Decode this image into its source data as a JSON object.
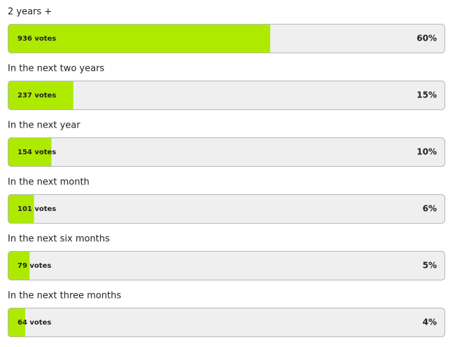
{
  "chart_data": {
    "type": "bar",
    "orientation": "horizontal",
    "categories": [
      "2 years +",
      "In the next two years",
      "In the next year",
      "In the next month",
      "In the next six months",
      "In the next three months"
    ],
    "values": [
      60,
      15,
      10,
      6,
      5,
      4
    ],
    "value_labels": [
      "60%",
      "15%",
      "10%",
      "6%",
      "5%",
      "4%"
    ],
    "votes": [
      936,
      237,
      154,
      101,
      79,
      64
    ],
    "votes_labels": [
      "936 votes",
      "237 votes",
      "154 votes",
      "101 votes",
      "79 votes",
      "64 votes"
    ],
    "color": "#aeea00",
    "track_color": "#efefef",
    "xlim": [
      0,
      100
    ]
  }
}
